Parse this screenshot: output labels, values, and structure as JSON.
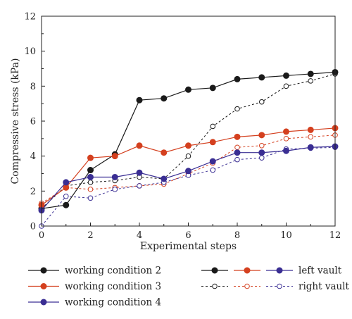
{
  "chart_data": {
    "type": "line",
    "xlabel": "Experimental steps",
    "ylabel": "Compressive stress (kPa)",
    "xlim": [
      0,
      12
    ],
    "ylim": [
      0,
      12
    ],
    "xticks": [
      "0",
      "2",
      "4",
      "6",
      "8",
      "10",
      "12"
    ],
    "yticks": [
      "0",
      "2",
      "4",
      "6",
      "8",
      "10",
      "12"
    ],
    "grid": false,
    "legend_placement": "below",
    "x": [
      0,
      1,
      2,
      3,
      4,
      5,
      6,
      7,
      8,
      9,
      10,
      11,
      12
    ],
    "series": [
      {
        "name": "working condition 2",
        "vault": "left vault",
        "color": "#1a1a1a",
        "style": "solid",
        "marker": "filled",
        "values": [
          1.0,
          1.2,
          3.2,
          4.1,
          7.2,
          7.3,
          7.8,
          7.9,
          8.4,
          8.5,
          8.6,
          8.7,
          8.8
        ]
      },
      {
        "name": "working condition 2",
        "vault": "right vault",
        "color": "#1a1a1a",
        "style": "dashed",
        "marker": "open",
        "values": [
          1.0,
          2.3,
          2.5,
          2.6,
          2.8,
          2.7,
          4.0,
          5.7,
          6.7,
          7.1,
          8.0,
          8.3,
          8.7
        ]
      },
      {
        "name": "working condition 3",
        "vault": "left vault",
        "color": "#d4401f",
        "style": "solid",
        "marker": "filled",
        "values": [
          1.2,
          2.2,
          3.9,
          4.0,
          4.6,
          4.2,
          4.6,
          4.8,
          5.1,
          5.2,
          5.4,
          5.5,
          5.6
        ]
      },
      {
        "name": "working condition 3",
        "vault": "right vault",
        "color": "#d4401f",
        "style": "dashed",
        "marker": "open",
        "values": [
          1.3,
          2.2,
          2.1,
          2.2,
          2.3,
          2.4,
          3.0,
          3.6,
          4.5,
          4.6,
          5.0,
          5.1,
          5.2
        ]
      },
      {
        "name": "working condition 4",
        "vault": "left vault",
        "color": "#3a2e93",
        "style": "solid",
        "marker": "filled",
        "values": [
          0.9,
          2.5,
          2.8,
          2.8,
          3.05,
          2.7,
          3.15,
          3.7,
          4.2,
          4.2,
          4.3,
          4.5,
          4.55
        ]
      },
      {
        "name": "working condition 4",
        "vault": "right vault",
        "color": "#3a2e93",
        "style": "dashed",
        "marker": "open",
        "values": [
          0.0,
          1.7,
          1.6,
          2.1,
          2.3,
          2.5,
          2.9,
          3.2,
          3.8,
          3.9,
          4.4,
          4.45,
          4.5
        ]
      }
    ],
    "legend": {
      "conditions": [
        {
          "label": "working condition 2",
          "color": "#1a1a1a"
        },
        {
          "label": "working condition 3",
          "color": "#d4401f"
        },
        {
          "label": "working condition 4",
          "color": "#3a2e93"
        }
      ],
      "vault_colors": [
        "#1a1a1a",
        "#d4401f",
        "#3a2e93"
      ],
      "vaults": [
        {
          "label": "left vault",
          "style": "solid",
          "marker": "filled"
        },
        {
          "label": "right vault",
          "style": "dashed",
          "marker": "open"
        }
      ]
    }
  }
}
